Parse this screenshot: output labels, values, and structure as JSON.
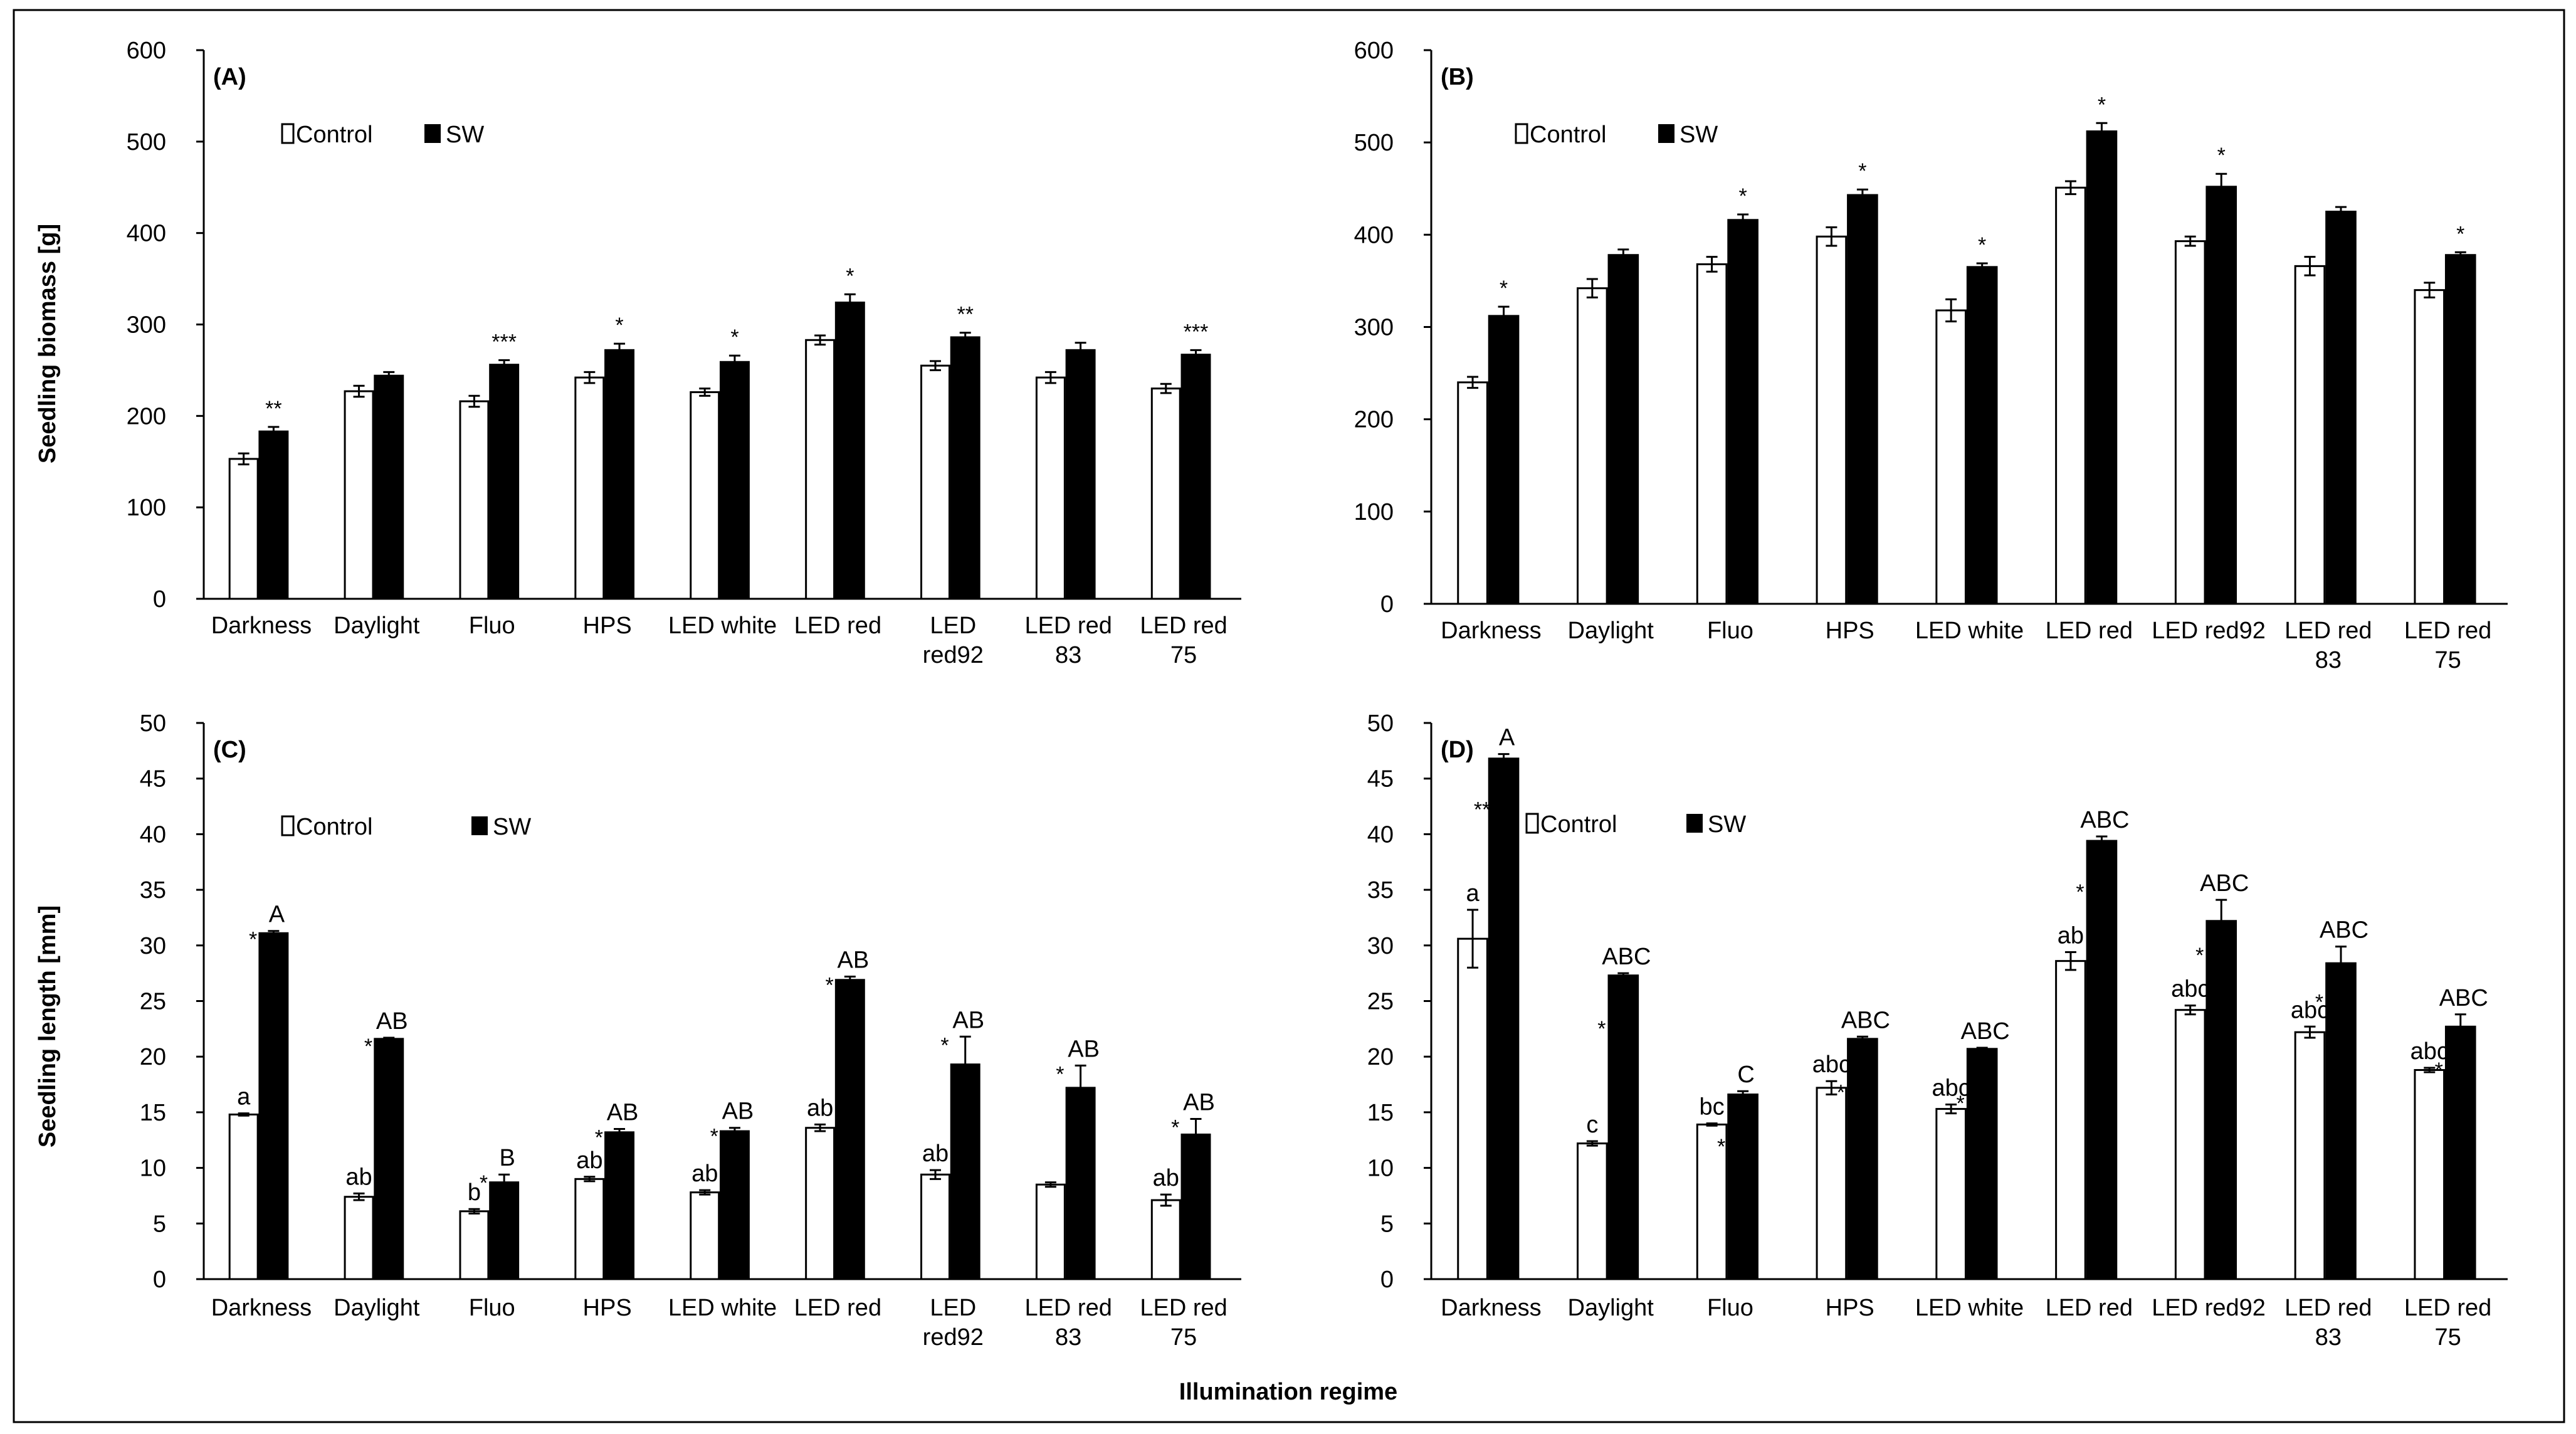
{
  "figure": {
    "xlabel": "Illumination regime",
    "ylabel_top": "Seedling biomass  [g]",
    "ylabel_bottom": "Seedling length [mm]"
  },
  "chart_data": [
    {
      "type": "bar",
      "panel": "(A)",
      "categories": [
        [
          "Darkness"
        ],
        [
          "Daylight"
        ],
        [
          "Fluo"
        ],
        [
          "HPS"
        ],
        [
          "LED white"
        ],
        [
          "LED red"
        ],
        [
          "LED",
          "red92"
        ],
        [
          "LED red",
          "83"
        ],
        [
          "LED red",
          "75"
        ]
      ],
      "ylim": [
        0,
        600
      ],
      "yticks": [
        0,
        100,
        200,
        300,
        400,
        500,
        600
      ],
      "legend": [
        "Control",
        "SW"
      ],
      "legend_placement": "top-left",
      "series": [
        {
          "name": "Control",
          "values": [
            153,
            227,
            216,
            242,
            226,
            283,
            255,
            242,
            230
          ],
          "errors": [
            6,
            6,
            6,
            6,
            4,
            5,
            5,
            6,
            5
          ],
          "labels": [
            "",
            "",
            "",
            "",
            "",
            "",
            "",
            "",
            ""
          ]
        },
        {
          "name": "SW",
          "values": [
            183,
            244,
            256,
            272,
            259,
            324,
            286,
            272,
            267
          ],
          "errors": [
            5,
            4,
            5,
            7,
            7,
            9,
            5,
            8,
            5
          ],
          "labels": [
            "",
            "",
            "",
            "",
            "",
            "",
            "",
            "",
            ""
          ]
        }
      ],
      "significance": [
        "**",
        "",
        "***",
        "*",
        "*",
        "*",
        "**",
        "",
        "***"
      ]
    },
    {
      "type": "bar",
      "panel": "(B)",
      "categories": [
        [
          "Darkness"
        ],
        [
          "Daylight"
        ],
        [
          "Fluo"
        ],
        [
          "HPS"
        ],
        [
          "LED white"
        ],
        [
          "LED red"
        ],
        [
          "LED red92"
        ],
        [
          "LED red",
          "83"
        ],
        [
          "LED red",
          "75"
        ]
      ],
      "ylim": [
        0,
        600
      ],
      "yticks": [
        0,
        100,
        200,
        300,
        400,
        500,
        600
      ],
      "legend": [
        "Control",
        "SW"
      ],
      "legend_placement": "top-left",
      "series": [
        {
          "name": "Control",
          "values": [
            240,
            342,
            368,
            398,
            318,
            451,
            393,
            366,
            340
          ],
          "errors": [
            6,
            10,
            8,
            10,
            12,
            7,
            5,
            10,
            8
          ],
          "labels": [
            "",
            "",
            "",
            "",
            "",
            "",
            "",
            "",
            ""
          ]
        },
        {
          "name": "SW",
          "values": [
            312,
            378,
            416,
            443,
            365,
            512,
            452,
            425,
            378
          ],
          "errors": [
            10,
            6,
            6,
            6,
            4,
            9,
            14,
            5,
            3
          ],
          "labels": [
            "",
            "",
            "",
            "",
            "",
            "",
            "",
            "",
            ""
          ]
        }
      ],
      "significance": [
        "*",
        "",
        "*",
        "*",
        "*",
        "*",
        "*",
        "",
        "*"
      ]
    },
    {
      "type": "bar",
      "panel": "(C)",
      "categories": [
        [
          "Darkness"
        ],
        [
          "Daylight"
        ],
        [
          "Fluo"
        ],
        [
          "HPS"
        ],
        [
          "LED white"
        ],
        [
          "LED red"
        ],
        [
          "LED",
          "red92"
        ],
        [
          "LED red",
          "83"
        ],
        [
          "LED red",
          "75"
        ]
      ],
      "ylim": [
        0,
        50
      ],
      "yticks": [
        0,
        5,
        10,
        15,
        20,
        25,
        30,
        35,
        40,
        45,
        50
      ],
      "legend": [
        "Control",
        "SW"
      ],
      "legend_placement": "top-left",
      "series": [
        {
          "name": "Control",
          "values": [
            14.8,
            7.4,
            6.1,
            9.0,
            7.8,
            13.6,
            9.4,
            8.5,
            7.1
          ],
          "errors": [
            0.1,
            0.3,
            0.2,
            0.2,
            0.2,
            0.3,
            0.4,
            0.2,
            0.5
          ],
          "labels": [
            "a",
            "ab",
            "b",
            "ab",
            "ab",
            "ab",
            "ab",
            "",
            "ab"
          ]
        },
        {
          "name": "SW",
          "values": [
            31.1,
            21.6,
            8.7,
            13.2,
            13.3,
            26.9,
            19.3,
            17.2,
            13.0
          ],
          "errors": [
            0.2,
            0.1,
            0.7,
            0.3,
            0.3,
            0.3,
            2.5,
            2.0,
            1.4
          ],
          "labels": [
            "A",
            "AB",
            "B",
            "AB",
            "AB",
            "AB",
            "AB",
            "AB",
            "AB"
          ]
        }
      ],
      "significance": [
        "*",
        "*",
        "*",
        "*",
        "*",
        "*",
        "*",
        "*",
        "*"
      ]
    },
    {
      "type": "bar",
      "panel": "(D)",
      "categories": [
        [
          "Darkness"
        ],
        [
          "Daylight"
        ],
        [
          "Fluo"
        ],
        [
          "HPS"
        ],
        [
          "LED white"
        ],
        [
          "LED red"
        ],
        [
          "LED red92"
        ],
        [
          "LED red",
          "83"
        ],
        [
          "LED red",
          "75"
        ]
      ],
      "ylim": [
        0,
        50
      ],
      "yticks": [
        0,
        5,
        10,
        15,
        20,
        25,
        30,
        35,
        40,
        45,
        50
      ],
      "legend": [
        "Control",
        "SW"
      ],
      "legend_placement": "top-left",
      "series": [
        {
          "name": "Control",
          "values": [
            30.6,
            12.2,
            13.9,
            17.2,
            15.3,
            28.6,
            24.2,
            22.2,
            18.8
          ],
          "errors": [
            2.6,
            0.2,
            0.1,
            0.6,
            0.4,
            0.8,
            0.4,
            0.5,
            0.2
          ],
          "labels": [
            "a",
            "c",
            "bc",
            "abc",
            "abc",
            "ab",
            "abc",
            "abc",
            "abc"
          ]
        },
        {
          "name": "SW",
          "values": [
            46.8,
            27.3,
            16.6,
            21.6,
            20.7,
            39.4,
            32.2,
            28.4,
            22.7
          ],
          "errors": [
            0.4,
            0.2,
            0.3,
            0.2,
            0.1,
            0.4,
            1.9,
            1.5,
            1.1
          ],
          "labels": [
            "A",
            "ABC",
            "C",
            "ABC",
            "ABC",
            "ABC",
            "ABC",
            "ABC",
            "ABC"
          ]
        }
      ],
      "significance": [
        "**",
        "*",
        "*",
        "*",
        "*",
        "*",
        "*",
        "*",
        "*"
      ]
    }
  ]
}
